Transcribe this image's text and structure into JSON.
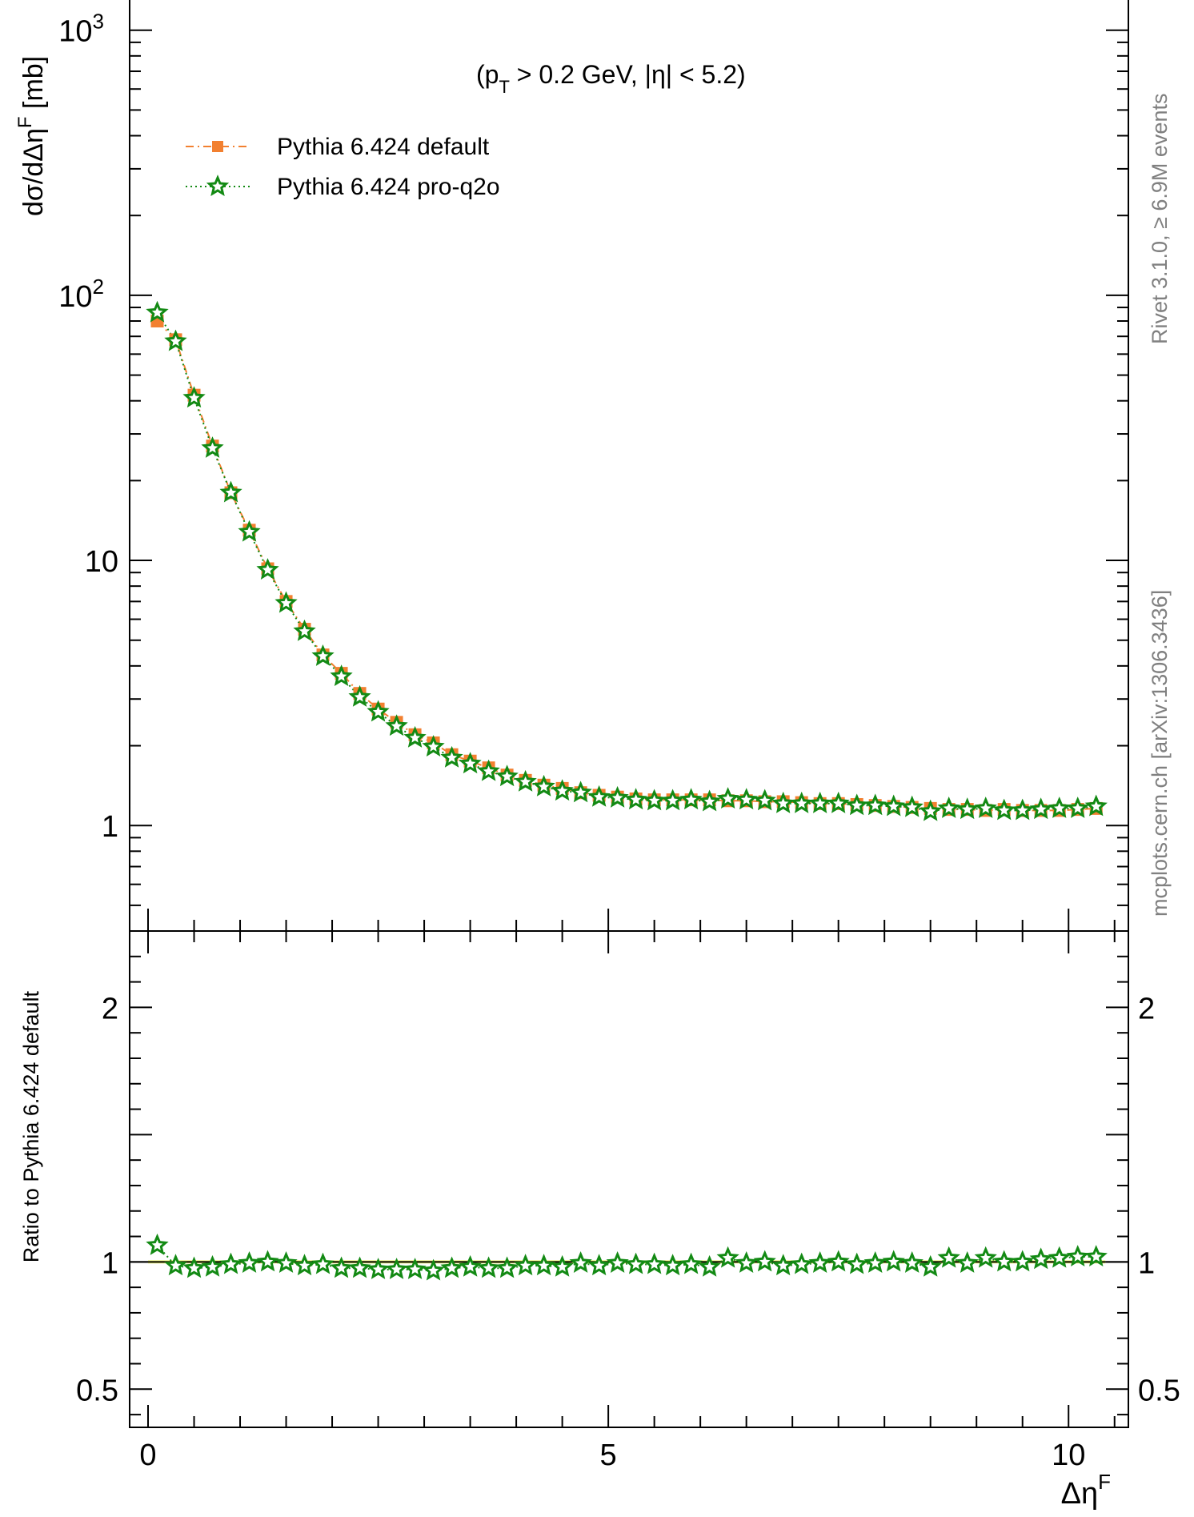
{
  "colors": {
    "default_series": "#f28030",
    "proq2o_series": "#138a14",
    "proq2o_fill": "#ffffff",
    "band": "#eef56a",
    "side_text": "#808080",
    "axes": "#000000"
  },
  "side_notes": {
    "rivet": "Rivet 3.1.0, ≥ 6.9M events",
    "mcplots": "mcplots.cern.ch [arXiv:1306.3436]"
  },
  "chart_data": [
    {
      "type": "line",
      "panel": "main",
      "annotation": {
        "pre": "(p",
        "sub": "T",
        "mid": " > 0.2 GeV, |",
        "eta": "η",
        "post": "| < 5.2)"
      },
      "ylabel": "dσ/dΔη^F [mb]",
      "ylabel_parts": {
        "main": "dσ/dΔη",
        "sup": "F",
        "unit": " [mb]"
      },
      "yscale": "log",
      "ylim": [
        0.4,
        1300
      ],
      "xlim": [
        -0.2,
        10.65
      ],
      "yticks": [
        {
          "value": 1000,
          "base": "10",
          "exp": "3"
        },
        {
          "value": 100,
          "base": "10",
          "exp": "2"
        },
        {
          "value": 10,
          "base": "10",
          "exp": ""
        },
        {
          "value": 1,
          "base": "1",
          "exp": ""
        }
      ],
      "legend": {
        "placement": "top-left",
        "entries": [
          {
            "label": "Pythia 6.424 default",
            "marker": "square",
            "line": "dashdot"
          },
          {
            "label": "Pythia 6.424 pro-q2o",
            "marker": "star",
            "line": "dotted"
          }
        ]
      },
      "x": [
        0.1,
        0.3,
        0.5,
        0.7,
        0.9,
        1.1,
        1.3,
        1.5,
        1.7,
        1.9,
        2.1,
        2.3,
        2.5,
        2.7,
        2.9,
        3.1,
        3.3,
        3.5,
        3.7,
        3.9,
        4.1,
        4.3,
        4.5,
        4.7,
        4.9,
        5.1,
        5.3,
        5.5,
        5.7,
        5.9,
        6.1,
        6.3,
        6.5,
        6.7,
        6.9,
        7.1,
        7.3,
        7.5,
        7.7,
        7.9,
        8.1,
        8.3,
        8.5,
        8.7,
        8.9,
        9.1,
        9.3,
        9.5,
        9.7,
        9.9,
        10.1,
        10.3
      ],
      "series": [
        {
          "name": "Pythia 6.424 default",
          "values": [
            80,
            68,
            42,
            27,
            18,
            13,
            9.3,
            7.0,
            5.5,
            4.4,
            3.75,
            3.15,
            2.75,
            2.45,
            2.2,
            2.05,
            1.85,
            1.75,
            1.65,
            1.55,
            1.48,
            1.42,
            1.38,
            1.33,
            1.3,
            1.28,
            1.26,
            1.25,
            1.25,
            1.25,
            1.25,
            1.24,
            1.24,
            1.23,
            1.23,
            1.22,
            1.21,
            1.21,
            1.2,
            1.19,
            1.18,
            1.17,
            1.16,
            1.15,
            1.15,
            1.14,
            1.15,
            1.14,
            1.14,
            1.14,
            1.15,
            1.16
          ]
        },
        {
          "name": "Pythia 6.424 pro-q2o",
          "values": [
            86,
            67,
            41,
            26.5,
            18,
            12.8,
            9.2,
            6.9,
            5.4,
            4.35,
            3.65,
            3.05,
            2.68,
            2.37,
            2.14,
            1.98,
            1.8,
            1.71,
            1.6,
            1.53,
            1.46,
            1.4,
            1.35,
            1.33,
            1.28,
            1.27,
            1.25,
            1.24,
            1.24,
            1.25,
            1.23,
            1.26,
            1.25,
            1.24,
            1.21,
            1.21,
            1.21,
            1.21,
            1.19,
            1.19,
            1.18,
            1.17,
            1.13,
            1.16,
            1.15,
            1.16,
            1.14,
            1.14,
            1.15,
            1.16,
            1.16,
            1.18
          ]
        }
      ]
    },
    {
      "type": "line",
      "panel": "ratio",
      "ylabel": "Ratio to Pythia 6.424 default",
      "xlabel": "Δη^F",
      "xlabel_parts": {
        "main": "Δη",
        "sup": "F"
      },
      "ylim": [
        0.35,
        2.3
      ],
      "xlim": [
        -0.2,
        10.65
      ],
      "yticks": [
        {
          "value": 0.5,
          "label": "0.5"
        },
        {
          "value": 1,
          "label": "1"
        },
        {
          "value": 2,
          "label": "2"
        }
      ],
      "xticks": [
        {
          "value": 0,
          "label": "0"
        },
        {
          "value": 5,
          "label": "5"
        },
        {
          "value": 10,
          "label": "10"
        }
      ],
      "reference_line": 1,
      "series": [
        {
          "name": "Pythia 6.424 pro-q2o",
          "values": [
            1.065,
            0.985,
            0.975,
            0.98,
            0.99,
            0.995,
            1.0,
            0.995,
            0.985,
            0.99,
            0.975,
            0.975,
            0.97,
            0.97,
            0.97,
            0.965,
            0.975,
            0.98,
            0.975,
            0.975,
            0.985,
            0.985,
            0.98,
            0.995,
            0.985,
            0.995,
            0.99,
            0.99,
            0.985,
            0.99,
            0.98,
            1.015,
            0.995,
            1.0,
            0.985,
            0.99,
            0.995,
            1.0,
            0.99,
            0.995,
            1.0,
            0.995,
            0.98,
            1.015,
            0.995,
            1.015,
            1.0,
            1.0,
            1.01,
            1.015,
            1.02,
            1.02
          ]
        }
      ]
    }
  ]
}
